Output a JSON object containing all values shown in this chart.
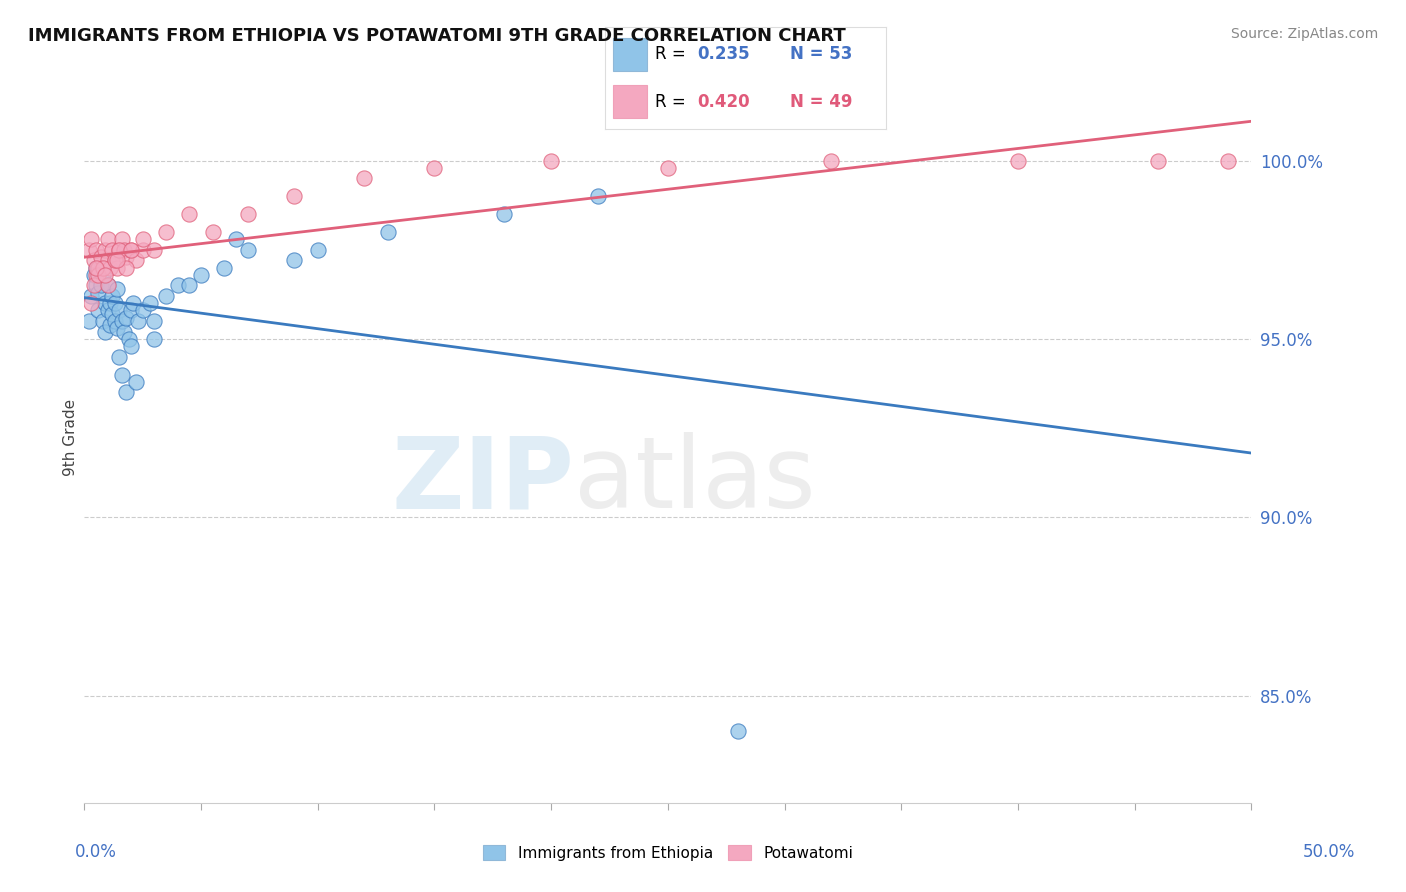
{
  "title": "IMMIGRANTS FROM ETHIOPIA VS POTAWATOMI 9TH GRADE CORRELATION CHART",
  "source": "Source: ZipAtlas.com",
  "ylabel": "9th Grade",
  "xlim": [
    0.0,
    50.0
  ],
  "ylim": [
    82.0,
    102.5
  ],
  "yticks": [
    85.0,
    90.0,
    95.0,
    100.0
  ],
  "ytick_labels": [
    "85.0%",
    "90.0%",
    "95.0%",
    "100.0%"
  ],
  "ethiopia_color": "#90c4e8",
  "potawatomi_color": "#f4a8c0",
  "ethiopia_line_color": "#3a7abf",
  "potawatomi_line_color": "#e0607a",
  "dashed_line_color": "#aaaaaa",
  "grid_color": "#cccccc",
  "background_color": "#ffffff",
  "R_ethiopia": "0.235",
  "N_ethiopia": "53",
  "R_potawatomi": "0.420",
  "N_potawatomi": "49",
  "ethiopia_scatter_x": [
    0.2,
    0.3,
    0.4,
    0.5,
    0.5,
    0.6,
    0.6,
    0.7,
    0.7,
    0.8,
    0.8,
    0.9,
    0.9,
    1.0,
    1.0,
    1.1,
    1.1,
    1.2,
    1.2,
    1.3,
    1.3,
    1.4,
    1.4,
    1.5,
    1.6,
    1.7,
    1.8,
    1.9,
    2.0,
    2.1,
    2.3,
    2.5,
    2.8,
    3.0,
    3.5,
    4.0,
    5.0,
    6.0,
    7.0,
    9.0,
    1.5,
    1.6,
    1.8,
    2.0,
    2.2,
    3.0,
    4.5,
    6.5,
    10.0,
    13.0,
    18.0,
    22.0,
    28.0
  ],
  "ethiopia_scatter_y": [
    95.5,
    96.2,
    96.8,
    97.0,
    96.5,
    96.3,
    95.8,
    96.5,
    97.0,
    95.5,
    96.8,
    96.0,
    95.2,
    95.8,
    96.5,
    96.0,
    95.4,
    95.7,
    96.2,
    95.5,
    96.0,
    95.3,
    96.4,
    95.8,
    95.5,
    95.2,
    95.6,
    95.0,
    95.8,
    96.0,
    95.5,
    95.8,
    96.0,
    95.5,
    96.2,
    96.5,
    96.8,
    97.0,
    97.5,
    97.2,
    94.5,
    94.0,
    93.5,
    94.8,
    93.8,
    95.0,
    96.5,
    97.8,
    97.5,
    98.0,
    98.5,
    99.0,
    84.0
  ],
  "potawatomi_scatter_x": [
    0.2,
    0.3,
    0.4,
    0.5,
    0.5,
    0.6,
    0.7,
    0.8,
    0.9,
    1.0,
    1.0,
    1.1,
    1.2,
    1.3,
    1.4,
    1.5,
    1.6,
    1.7,
    1.8,
    2.0,
    2.2,
    2.5,
    0.4,
    0.6,
    0.8,
    1.0,
    1.3,
    1.5,
    1.8,
    2.0,
    2.5,
    3.0,
    3.5,
    4.5,
    5.5,
    7.0,
    9.0,
    12.0,
    15.0,
    20.0,
    25.0,
    32.0,
    40.0,
    46.0,
    49.0,
    0.3,
    0.5,
    0.9,
    1.4
  ],
  "potawatomi_scatter_y": [
    97.5,
    97.8,
    97.2,
    97.5,
    96.8,
    97.0,
    97.3,
    97.0,
    97.5,
    97.2,
    97.8,
    97.0,
    97.5,
    97.2,
    97.0,
    97.5,
    97.8,
    97.5,
    97.3,
    97.5,
    97.2,
    97.5,
    96.5,
    96.8,
    97.0,
    96.5,
    97.2,
    97.5,
    97.0,
    97.5,
    97.8,
    97.5,
    98.0,
    98.5,
    98.0,
    98.5,
    99.0,
    99.5,
    99.8,
    100.0,
    99.8,
    100.0,
    100.0,
    100.0,
    100.0,
    96.0,
    97.0,
    96.8,
    97.2
  ]
}
